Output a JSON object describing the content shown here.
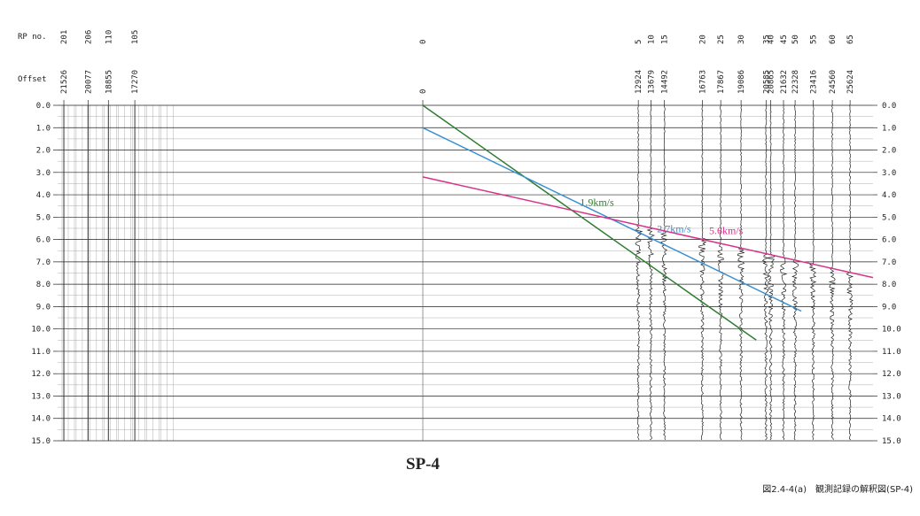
{
  "chart_data": {
    "type": "seismic-section",
    "title": "SP-4",
    "caption": "図2.4-4(a)　観測記録の解釈図(SP-4)",
    "rp_axis_label": "RP no.",
    "offset_axis_label": "Offset",
    "ylim": [
      0,
      15
    ],
    "yticks": [
      {
        "value": 0,
        "label": "0.0"
      },
      {
        "value": 1,
        "label": "1.0"
      },
      {
        "value": 2,
        "label": "2.0"
      },
      {
        "value": 3,
        "label": "3.0"
      },
      {
        "value": 4,
        "label": "4.0"
      },
      {
        "value": 5,
        "label": "5.0"
      },
      {
        "value": 6,
        "label": "6.0"
      },
      {
        "value": 7,
        "label": "7.0"
      },
      {
        "value": 8,
        "label": "8.0"
      },
      {
        "value": 9,
        "label": "9.0"
      },
      {
        "value": 10,
        "label": "10.0"
      },
      {
        "value": 11,
        "label": "11.0"
      },
      {
        "value": 12,
        "label": "12.0"
      },
      {
        "value": 13,
        "label": "13.0"
      },
      {
        "value": 14,
        "label": "14.0"
      },
      {
        "value": 15,
        "label": "15.0"
      }
    ],
    "xlim": [
      -21900,
      27000
    ],
    "rp_labels": [
      "201",
      "206",
      "110",
      "105",
      "0",
      "5",
      "10",
      "15",
      "20",
      "25",
      "30",
      "35",
      "40",
      "45",
      "50",
      "55",
      "60",
      "65"
    ],
    "xticks": [
      {
        "value": -21526,
        "label": "21526"
      },
      {
        "value": -20077,
        "label": "20077"
      },
      {
        "value": -18855,
        "label": "18855"
      },
      {
        "value": -17270,
        "label": "17270"
      },
      0,
      12924,
      13679,
      14492,
      16763,
      17867,
      19086,
      20585,
      20865,
      21632,
      22328,
      23416,
      24560,
      25624
    ],
    "series": [
      {
        "name": "1.9km/s",
        "color": "#2e7d32",
        "x": [
          0,
          20000
        ],
        "values": [
          0,
          10.5
        ]
      },
      {
        "name": "2.7km/s",
        "color": "#3a8fd0",
        "x": [
          0,
          22700
        ],
        "values": [
          1.0,
          9.2
        ]
      },
      {
        "name": "5.6km/s",
        "color": "#d6338a",
        "x": [
          0,
          27000
        ],
        "values": [
          3.2,
          7.7
        ]
      }
    ]
  }
}
